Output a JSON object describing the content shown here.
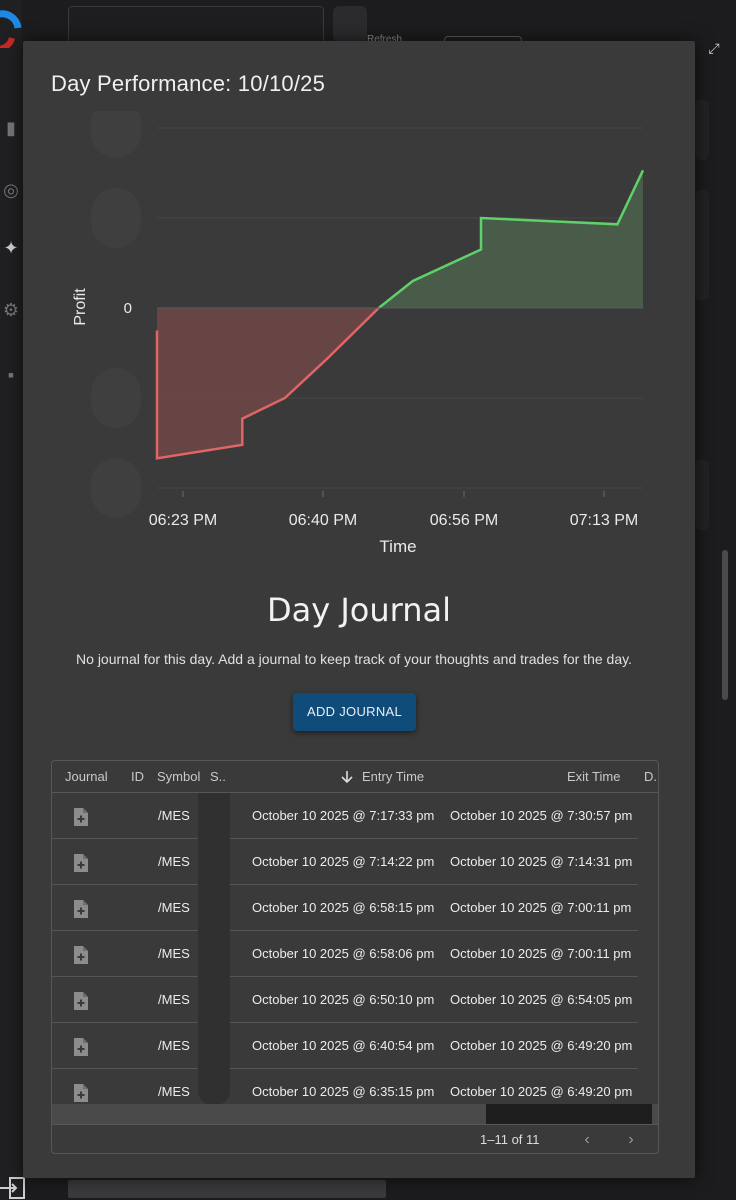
{
  "background": {
    "refresh_label": "Refresh"
  },
  "modal": {
    "title": "Day Performance: 10/10/25"
  },
  "chart_data": {
    "type": "area",
    "title": "",
    "xlabel": "Time",
    "ylabel": "Profit",
    "x_ticks": [
      "06:23 PM",
      "06:40 PM",
      "06:56 PM",
      "07:13 PM"
    ],
    "y_ticks": [
      "0"
    ],
    "colors": {
      "negative": "#e06666",
      "positive": "#5fd16a",
      "neg_fill": "#6e4747",
      "pos_fill": "#4a5e4a"
    },
    "series": [
      {
        "values": [
          {
            "x": "06:20 PM",
            "y": -0.25
          },
          {
            "x": "06:20 PM",
            "y": -1.67
          },
          {
            "x": "06:30 PM",
            "y": -1.52
          },
          {
            "x": "06:30 PM",
            "y": -1.23
          },
          {
            "x": "06:35 PM",
            "y": -1.0
          },
          {
            "x": "06:40 PM",
            "y": -0.56
          },
          {
            "x": "06:46 PM",
            "y": 0.0
          },
          {
            "x": "06:50 PM",
            "y": 0.3
          },
          {
            "x": "06:58 PM",
            "y": 0.65
          },
          {
            "x": "06:58 PM",
            "y": 1.0
          },
          {
            "x": "07:14 PM",
            "y": 0.93
          },
          {
            "x": "07:17 PM",
            "y": 1.53
          }
        ]
      }
    ]
  },
  "journal": {
    "title": "Day Journal",
    "subtitle": "No journal for this day. Add a journal to keep track of your thoughts and trades for the day.",
    "add_button": "ADD JOURNAL"
  },
  "grid": {
    "columns": [
      "Journal",
      "ID",
      "Symbol",
      "S..",
      "Entry Time",
      "Exit Time",
      "D.."
    ],
    "sort_icon": "arrow-down-icon",
    "rows": [
      {
        "symbol": "/MES",
        "entry": "October 10 2025 @ 7:17:33 pm",
        "exit": "October 10 2025 @ 7:30:57 pm"
      },
      {
        "symbol": "/MES",
        "entry": "October 10 2025 @ 7:14:22 pm",
        "exit": "October 10 2025 @ 7:14:31 pm"
      },
      {
        "symbol": "/MES",
        "entry": "October 10 2025 @ 6:58:15 pm",
        "exit": "October 10 2025 @ 7:00:11 pm"
      },
      {
        "symbol": "/MES",
        "entry": "October 10 2025 @ 6:58:06 pm",
        "exit": "October 10 2025 @ 7:00:11 pm"
      },
      {
        "symbol": "/MES",
        "entry": "October 10 2025 @ 6:50:10 pm",
        "exit": "October 10 2025 @ 6:54:05 pm"
      },
      {
        "symbol": "/MES",
        "entry": "October 10 2025 @ 6:40:54 pm",
        "exit": "October 10 2025 @ 6:49:20 pm"
      },
      {
        "symbol": "/MES",
        "entry": "October 10 2025 @ 6:35:15 pm",
        "exit": "October 10 2025 @ 6:49:20 pm"
      }
    ],
    "pagination": "1–11 of 11"
  }
}
